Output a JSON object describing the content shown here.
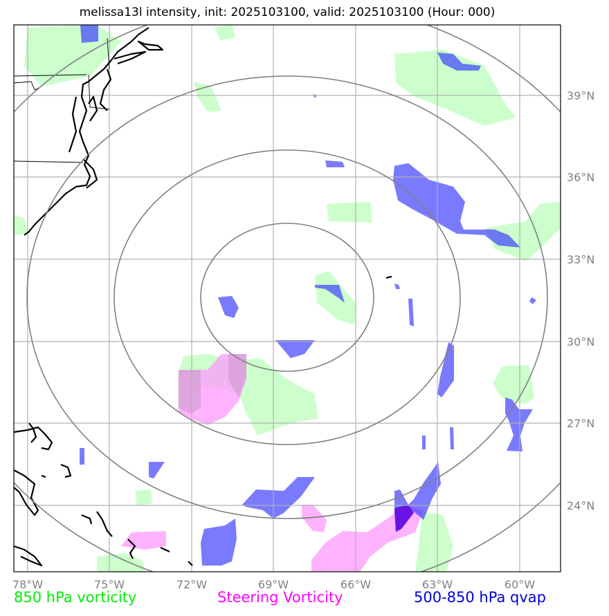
{
  "title": "melissa13l intensity, init: 2025103100, valid: 2025103100 (Hour: 000)",
  "lon_ticks": [
    "78°W",
    "75°W",
    "72°W",
    "69°W",
    "66°W",
    "63°W",
    "60°W"
  ],
  "lat_ticks": [
    "39°N",
    "36°N",
    "33°N",
    "30°N",
    "27°N",
    "24°N"
  ],
  "legend": {
    "green": "850 hPa vorticity",
    "magenta": "Steering Vorticity",
    "blue": "500-850 hPa qvap"
  },
  "colors": {
    "green_fill": "#ccffcc",
    "magenta_fill": "#ff99ff",
    "blue_fill": "#3333ff",
    "range_ring": "#808080",
    "gridline": "#b0b0b0",
    "coastline": "#000000"
  },
  "map": {
    "projection": "cylindrical lat-lon",
    "lon_range": [
      -78.5,
      -58.5
    ],
    "lat_range": [
      21.75,
      41.75
    ],
    "center": {
      "lon": -68.5,
      "lat": 31.75
    },
    "range_rings": 4,
    "grid": true
  }
}
